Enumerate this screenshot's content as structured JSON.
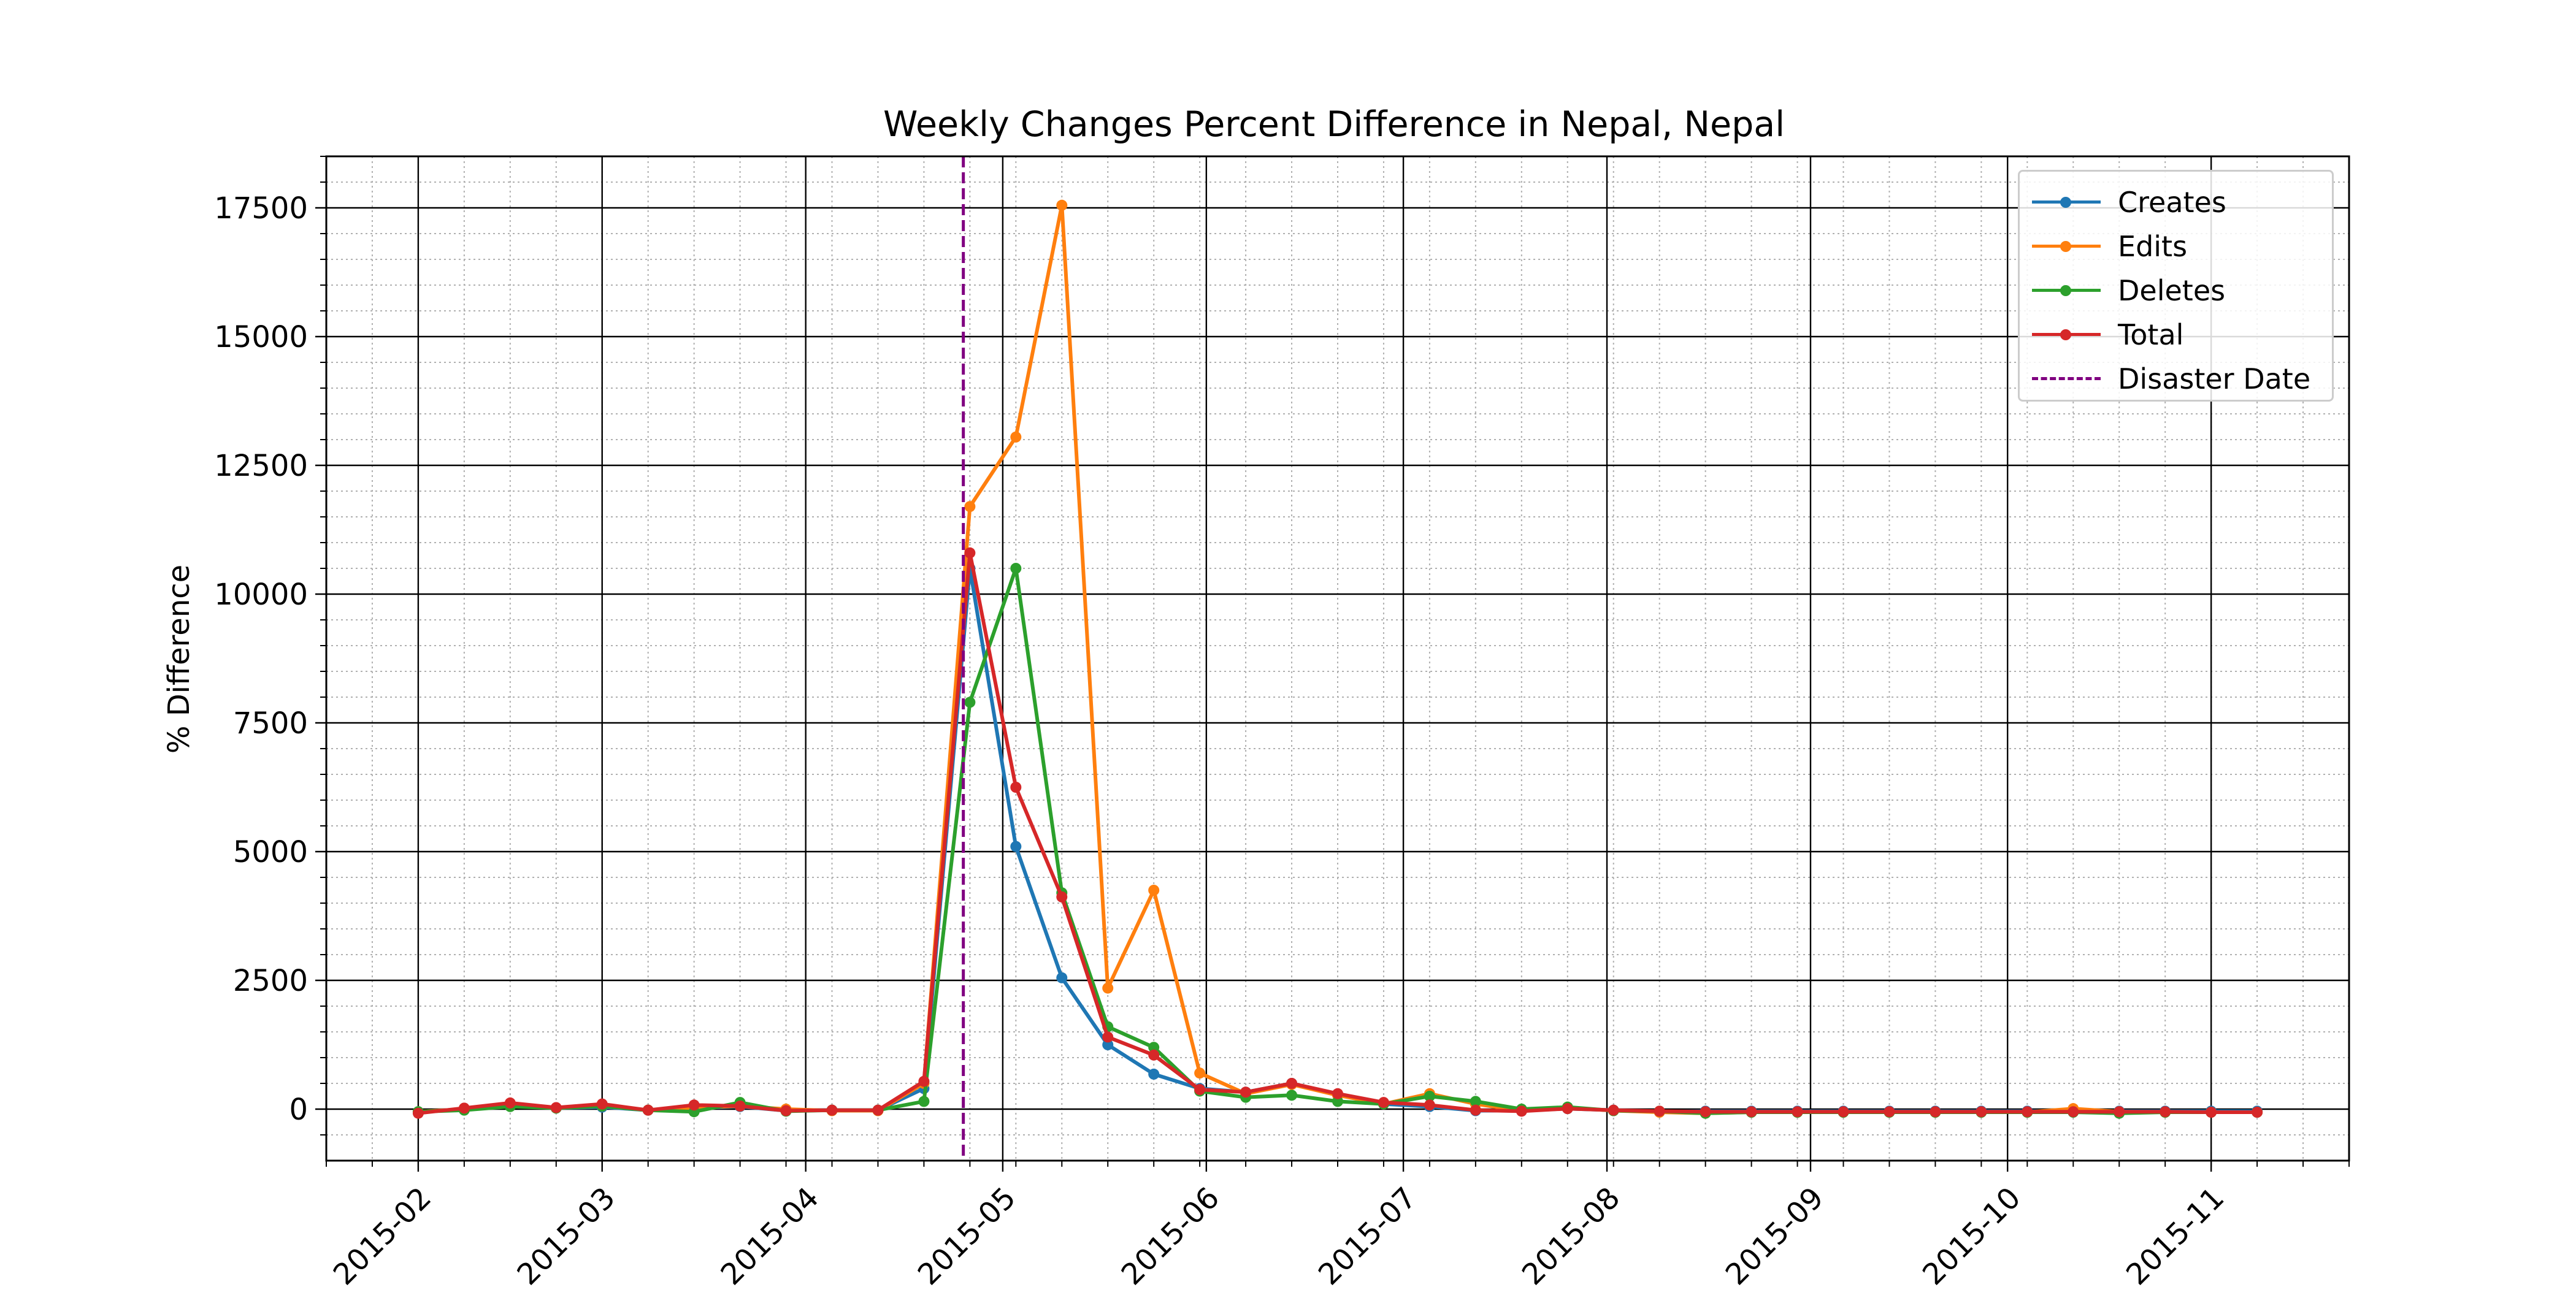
{
  "chart_data": {
    "type": "line",
    "title": "Weekly Changes Percent Difference in Nepal, Nepal",
    "xlabel": "",
    "ylabel": "% Difference",
    "xlim": [
      "2015-01-18",
      "2015-11-22"
    ],
    "ylim": [
      -1000,
      18500
    ],
    "y_ticks": [
      0,
      2500,
      5000,
      7500,
      10000,
      12500,
      15000,
      17500
    ],
    "x_ticks": [
      "2015-02",
      "2015-03",
      "2015-04",
      "2015-05",
      "2015-06",
      "2015-07",
      "2015-08",
      "2015-09",
      "2015-10",
      "2015-11"
    ],
    "grid": "major solid, minor dotted",
    "legend_position": "top-right",
    "x": [
      "2015-02-01",
      "2015-02-08",
      "2015-02-15",
      "2015-02-22",
      "2015-03-01",
      "2015-03-08",
      "2015-03-15",
      "2015-03-22",
      "2015-03-29",
      "2015-04-05",
      "2015-04-12",
      "2015-04-19",
      "2015-04-26",
      "2015-05-03",
      "2015-05-10",
      "2015-05-17",
      "2015-05-24",
      "2015-05-31",
      "2015-06-07",
      "2015-06-14",
      "2015-06-21",
      "2015-06-28",
      "2015-07-05",
      "2015-07-12",
      "2015-07-19",
      "2015-07-26",
      "2015-08-02",
      "2015-08-09",
      "2015-08-16",
      "2015-08-23",
      "2015-08-30",
      "2015-09-06",
      "2015-09-13",
      "2015-09-20",
      "2015-09-27",
      "2015-10-04",
      "2015-10-11",
      "2015-10-18",
      "2015-10-25",
      "2015-11-01",
      "2015-11-08"
    ],
    "series": [
      {
        "name": "Creates",
        "color": "#1f77b4",
        "values": [
          -50,
          0,
          60,
          20,
          40,
          -20,
          20,
          50,
          -30,
          -20,
          -20,
          400,
          10500,
          5100,
          2550,
          1250,
          680,
          400,
          330,
          500,
          280,
          100,
          50,
          -30,
          -30,
          10,
          -20,
          -50,
          -40,
          -40,
          -40,
          -40,
          -40,
          -40,
          -40,
          -40,
          -40,
          -40,
          -40,
          -40,
          -40
        ]
      },
      {
        "name": "Edits",
        "color": "#ff7f0e",
        "values": [
          -50,
          0,
          80,
          20,
          60,
          -20,
          30,
          60,
          0,
          -30,
          -30,
          500,
          11700,
          13050,
          17550,
          2350,
          4250,
          700,
          300,
          480,
          270,
          100,
          300,
          100,
          -30,
          30,
          -30,
          -60,
          -80,
          -60,
          -60,
          -60,
          -60,
          -60,
          -60,
          -60,
          10,
          -50,
          -60,
          -60,
          -60
        ]
      },
      {
        "name": "Deletes",
        "color": "#2ca02c",
        "values": [
          -50,
          -20,
          50,
          20,
          60,
          -20,
          -50,
          130,
          -40,
          -20,
          -20,
          150,
          7900,
          10500,
          4200,
          1600,
          1200,
          350,
          230,
          270,
          150,
          100,
          250,
          150,
          0,
          40,
          -30,
          -40,
          -80,
          -60,
          -60,
          -60,
          -60,
          -60,
          -60,
          -60,
          -60,
          -80,
          -60,
          -60,
          -60
        ]
      },
      {
        "name": "Total",
        "color": "#d62728",
        "values": [
          -80,
          20,
          120,
          30,
          100,
          -20,
          80,
          60,
          -30,
          -20,
          -20,
          540,
          10800,
          6250,
          4120,
          1400,
          1050,
          380,
          330,
          500,
          300,
          130,
          80,
          -20,
          -40,
          10,
          -20,
          -40,
          -50,
          -50,
          -50,
          -50,
          -50,
          -50,
          -50,
          -50,
          -50,
          -50,
          -50,
          -60,
          -60
        ]
      }
    ],
    "vline": {
      "name": "Disaster Date",
      "x": "2015-04-25",
      "color": "#800080",
      "style": "dashed"
    }
  }
}
